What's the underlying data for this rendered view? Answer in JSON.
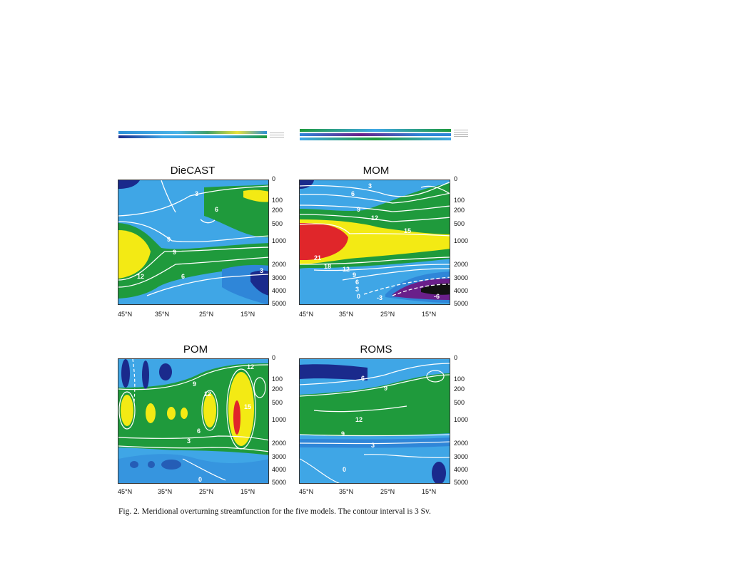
{
  "figure": {
    "caption": "Fig. 2. Meridional overturning streamfunction for the five models. The contour interval is 3 Sv.",
    "colors": {
      "deep_blue": "#1a2a8c",
      "blue": "#2f86d8",
      "light_blue": "#3fa6e6",
      "green": "#1f9a3c",
      "yellow": "#f3ea14",
      "red": "#e0262a",
      "purple": "#6a1f8a",
      "black": "#111111",
      "contour": "#ffffff"
    },
    "depth_ticks": [
      "0",
      "100",
      "200",
      "500",
      "1000",
      "2000",
      "3000",
      "4000",
      "5000"
    ],
    "lat_ticks": [
      "45°N",
      "35°N",
      "25°N",
      "15°N"
    ],
    "panels": [
      {
        "name": "DieCAST",
        "contour_labels": [
          "3",
          "6",
          "9",
          "12",
          "9",
          "6",
          "3"
        ]
      },
      {
        "name": "MOM",
        "contour_labels": [
          "3",
          "6",
          "9",
          "12",
          "15",
          "21",
          "18",
          "12",
          "9",
          "6",
          "3",
          "0",
          "-3",
          "-6"
        ]
      },
      {
        "name": "POM",
        "contour_labels": [
          "12",
          "9",
          "6",
          "3",
          "12",
          "15",
          "0"
        ]
      },
      {
        "name": "ROMS",
        "contour_labels": [
          "6",
          "9",
          "12",
          "9",
          "3",
          "0"
        ]
      }
    ]
  }
}
